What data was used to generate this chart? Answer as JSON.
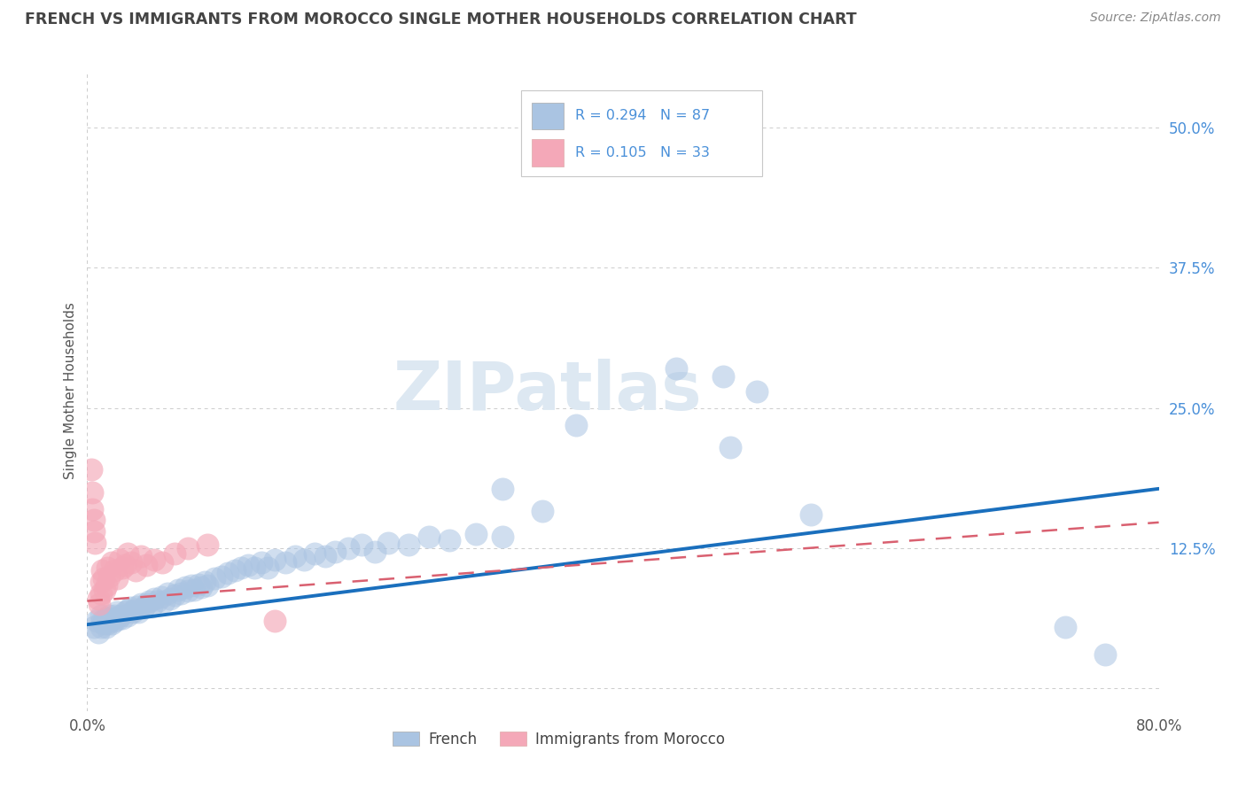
{
  "title": "FRENCH VS IMMIGRANTS FROM MOROCCO SINGLE MOTHER HOUSEHOLDS CORRELATION CHART",
  "source": "Source: ZipAtlas.com",
  "ylabel": "Single Mother Households",
  "xlim": [
    0.0,
    0.8
  ],
  "ylim": [
    -0.02,
    0.55
  ],
  "ytick_labels_right": [
    "50.0%",
    "37.5%",
    "25.0%",
    "12.5%",
    ""
  ],
  "ytick_vals_right": [
    0.5,
    0.375,
    0.25,
    0.125,
    0.0
  ],
  "french_R": 0.294,
  "french_N": 87,
  "morocco_R": 0.105,
  "morocco_N": 33,
  "french_color": "#aac4e2",
  "morocco_color": "#f4a8b8",
  "french_line_color": "#1a6fbd",
  "morocco_line_color": "#d96070",
  "background_color": "#ffffff",
  "grid_color": "#cccccc",
  "watermark": "ZIPatlas",
  "watermark_color": "#dde8f2",
  "title_color": "#444444",
  "source_color": "#888888",
  "tick_color": "#4a90d9",
  "axis_label_color": "#555555"
}
